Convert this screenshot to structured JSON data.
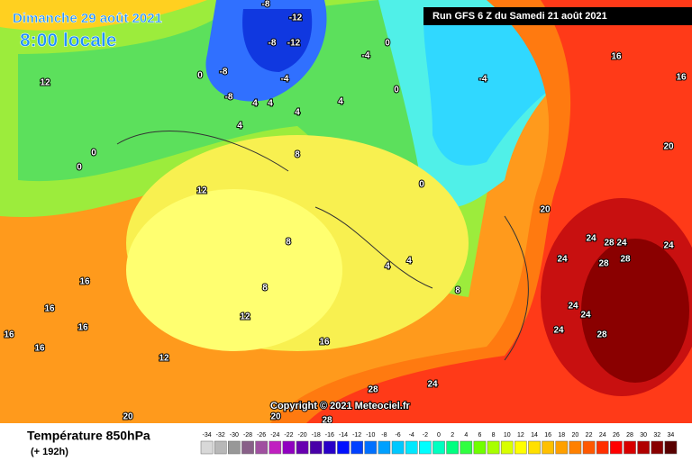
{
  "header": {
    "date": "Dimanche 29 août 2021",
    "time": "8:00 locale",
    "run": "Run GFS 6 Z du Samedi 21 août 2021",
    "copyright": "Copyright © 2021 Meteociel.fr"
  },
  "map_labels": [
    -8,
    -12,
    -8,
    -12,
    -4,
    -8,
    -8,
    4,
    4,
    4,
    4,
    0,
    0,
    0,
    -4,
    -4,
    16,
    16,
    20,
    20,
    24,
    28,
    24,
    24,
    24,
    28,
    28,
    24,
    24,
    24,
    28,
    24,
    28,
    28,
    20,
    20,
    16,
    16,
    16,
    16,
    16,
    16,
    12,
    12,
    12,
    12,
    8,
    8,
    8,
    4,
    4,
    8,
    0,
    0,
    0,
    4
  ],
  "legend": {
    "title": "Température 850hPa",
    "subtitle": "(+ 192h)",
    "values": [
      -34,
      -32,
      -30,
      -28,
      -26,
      -24,
      -22,
      -20,
      -18,
      -16,
      -14,
      -12,
      -10,
      -8,
      -6,
      -4,
      -2,
      0,
      2,
      4,
      6,
      8,
      10,
      12,
      14,
      16,
      18,
      20,
      22,
      24,
      26,
      28,
      30,
      32,
      34
    ],
    "colors": [
      "#d8d8d8",
      "#b8b8b8",
      "#989898",
      "#886088",
      "#a050a0",
      "#c020c0",
      "#9000c0",
      "#6800b0",
      "#4800a8",
      "#2800c8",
      "#0010ff",
      "#0040ff",
      "#0070ff",
      "#00a0ff",
      "#00c8ff",
      "#00e8ff",
      "#00ffff",
      "#00ffc0",
      "#00ff80",
      "#30ff40",
      "#70ff00",
      "#a8ff00",
      "#d8ff00",
      "#ffff00",
      "#ffe000",
      "#ffc000",
      "#ffa000",
      "#ff8000",
      "#ff5800",
      "#ff3000",
      "#ff0000",
      "#d80000",
      "#b00000",
      "#880000",
      "#580000"
    ]
  }
}
